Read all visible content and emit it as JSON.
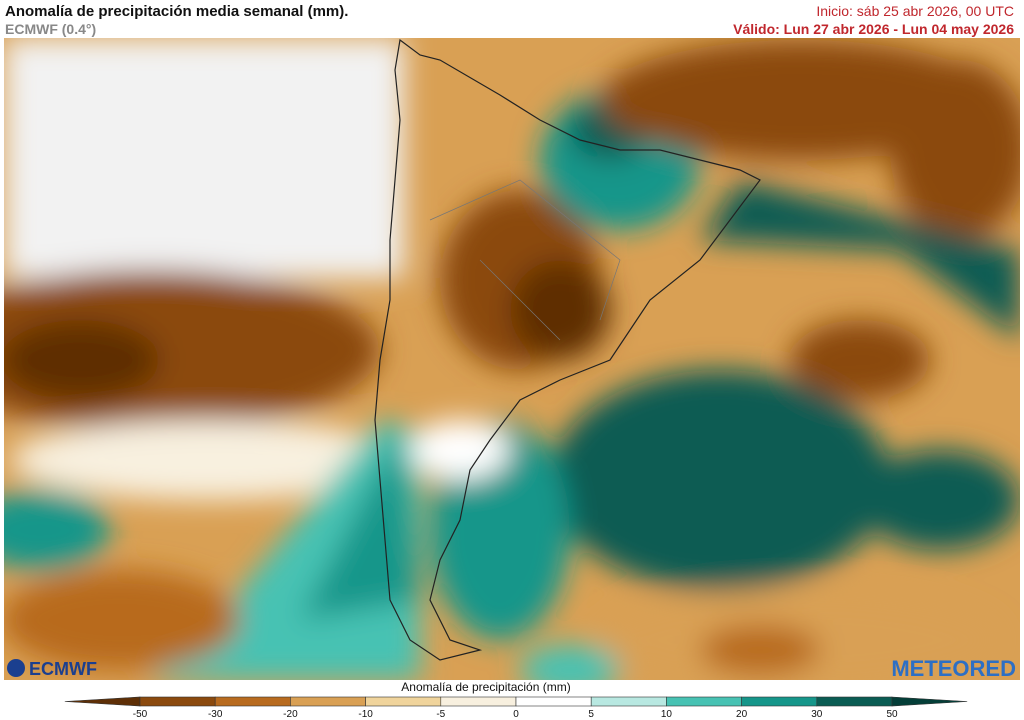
{
  "header": {
    "title": "Anomalía de precipitación media semanal (mm).",
    "model": "ECMWF (0.4°)",
    "init": "Inicio:  sáb 25 abr 2026, 00 UTC",
    "valid": "Válido: Lun 27 abr 2026 - Lun 04 may 2026"
  },
  "logos": {
    "left": "ECMWF",
    "right": "METEORED"
  },
  "legend": {
    "label": "Anomalía de precipitación (mm)",
    "levels": [
      -50,
      -30,
      -20,
      -10,
      -5,
      0,
      5,
      10,
      20,
      30,
      50
    ],
    "colors": [
      "#5e2f06",
      "#8b4a0e",
      "#b86b1f",
      "#d9a054",
      "#f0d49c",
      "#f8f0df",
      "#ffffff",
      "#b8e8e1",
      "#47c2b3",
      "#15968a",
      "#0a5c53",
      "#043e38"
    ]
  }
}
